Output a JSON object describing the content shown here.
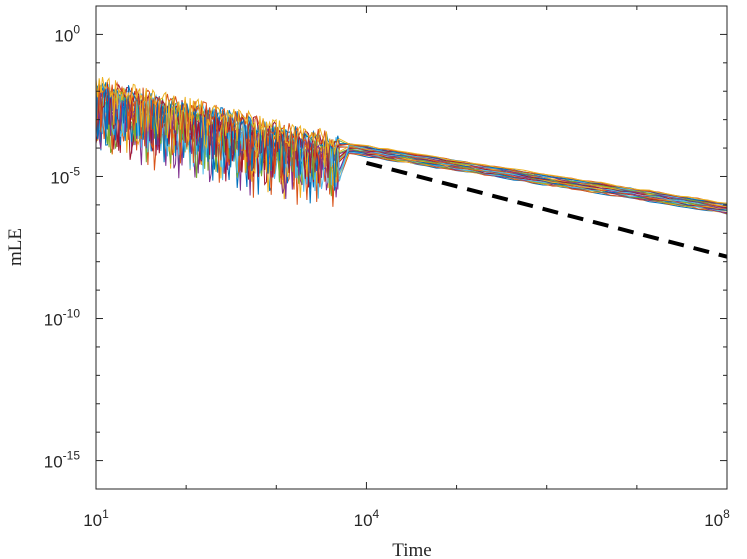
{
  "chart_data": {
    "type": "line",
    "xlabel": "Time",
    "ylabel": "mLE",
    "xscale": "log",
    "yscale": "log",
    "xlim": [
      10,
      100000000
    ],
    "ylim": [
      1e-16,
      10
    ],
    "xticks": [
      {
        "value": 10,
        "base": "10",
        "exp": "1"
      },
      {
        "value": 10000,
        "base": "10",
        "exp": "4"
      },
      {
        "value": 100000000,
        "base": "10",
        "exp": "8"
      }
    ],
    "yticks": [
      {
        "value": 1,
        "base": "10",
        "exp": "0"
      },
      {
        "value": 1e-05,
        "base": "10",
        "exp": "-5"
      },
      {
        "value": 1e-10,
        "base": "10",
        "exp": "-10"
      },
      {
        "value": 1e-15,
        "base": "10",
        "exp": "-15"
      }
    ],
    "grid": false,
    "legend": "none",
    "series_count": 24,
    "series_colors": [
      "#0072BD",
      "#D95319",
      "#EDB120",
      "#7E2F8E",
      "#77AC30",
      "#4DBEEE",
      "#A2142F"
    ],
    "representative_series": {
      "x": [
        10,
        12,
        14,
        16,
        20,
        25,
        30,
        40,
        50,
        70,
        100,
        150,
        200,
        300,
        500,
        800,
        1000,
        1500,
        2000,
        3000,
        5000,
        8000,
        10000,
        100000,
        1000000,
        10000000,
        100000000
      ],
      "y": [
        0.005,
        0.006,
        0.0008,
        0.004,
        0.0015,
        0.003,
        0.0006,
        0.002,
        0.0008,
        0.0012,
        0.0005,
        0.0008,
        0.0003,
        0.0004,
        0.0001,
        0.0002,
        5e-05,
        0.00012,
        6e-05,
        0.00015,
        0.00012,
        0.0001,
        8e-05,
        1.5e-05,
        3e-06,
        6e-07,
        1e-07
      ]
    },
    "reference_line": {
      "style": "black-dashed",
      "x": [
        10000,
        100000000
      ],
      "y": [
        3e-05,
        1.5e-08
      ]
    }
  }
}
